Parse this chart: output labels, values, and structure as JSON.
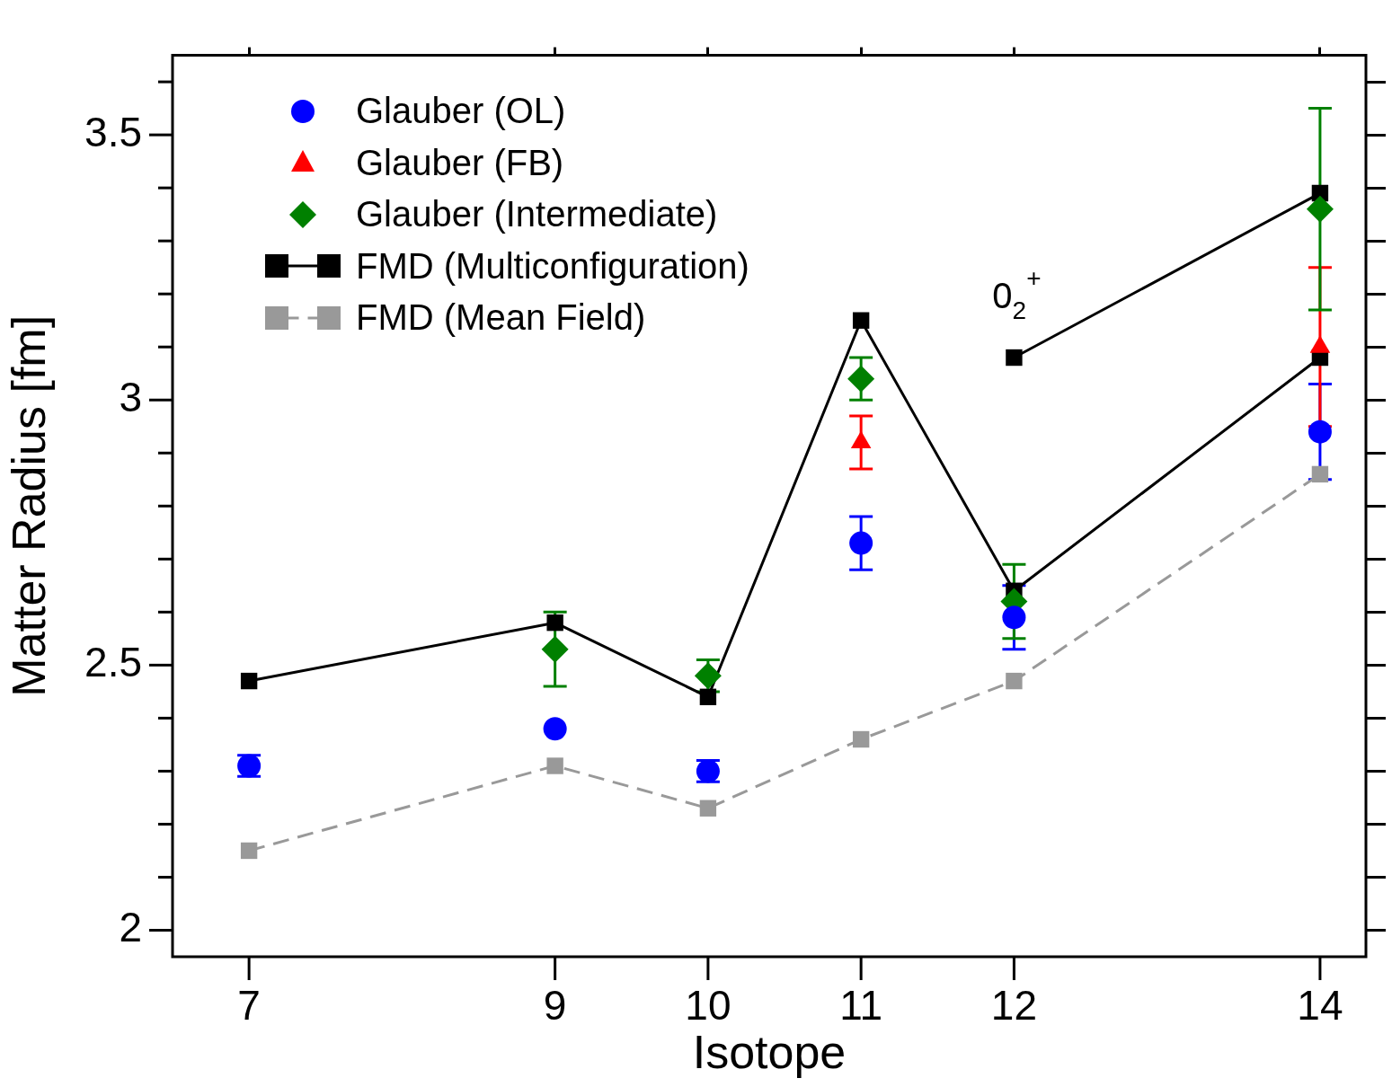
{
  "chart_data": {
    "type": "scatter",
    "xlabel": "Isotope",
    "ylabel": "Matter Radius [fm]",
    "xlim": [
      6.5,
      14.3
    ],
    "xticks": [
      7,
      9,
      10,
      11,
      12,
      14
    ],
    "ylim": [
      1.95,
      3.65
    ],
    "yticks": [
      2,
      {
        "value": 2.1,
        "label": null
      },
      {
        "value": 2.2,
        "label": null
      },
      {
        "value": 2.3,
        "label": null
      },
      {
        "value": 2.4,
        "label": null
      },
      2.5,
      {
        "value": 2.6,
        "label": null
      },
      {
        "value": 2.7,
        "label": null
      },
      {
        "value": 2.8,
        "label": null
      },
      {
        "value": 2.9,
        "label": null
      },
      3,
      {
        "value": 3.1,
        "label": null
      },
      {
        "value": 3.2,
        "label": null
      },
      {
        "value": 3.3,
        "label": null
      },
      {
        "value": 3.4,
        "label": null
      },
      3.5,
      {
        "value": 3.6,
        "label": null
      }
    ],
    "grid": false,
    "legend": "top left",
    "x": [
      7,
      9,
      10,
      11,
      12,
      14
    ],
    "annotations": [
      "0$_{2}$$^{+}$"
    ],
    "series": [
      {
        "name": "Glauber (OL)",
        "type": "scatter",
        "marker": "circle",
        "color": "#0000ff",
        "values": [
          2.31,
          2.38,
          2.3,
          2.73,
          2.59,
          2.94
        ],
        "errors": [
          0.02,
          null,
          0.02,
          0.05,
          0.06,
          0.09
        ]
      },
      {
        "name": "Glauber (FB)",
        "type": "scatter",
        "marker": "triangle",
        "color": "#ff0000",
        "x": [
          11,
          14
        ],
        "values": [
          2.92,
          3.1
        ],
        "errors": [
          0.05,
          0.15
        ]
      },
      {
        "name": "Glauber (Intermediate)",
        "type": "scatter",
        "marker": "diamond",
        "color": "#008000",
        "x": [
          9,
          10,
          11,
          12,
          14
        ],
        "values": [
          2.53,
          2.48,
          3.04,
          2.62,
          3.36
        ],
        "errors": [
          0.07,
          0.03,
          0.04,
          0.07,
          0.19
        ]
      },
      {
        "name": "FMD (Multiconfiguration)",
        "type": "line",
        "marker": "square",
        "line_style": "solid",
        "color": "#000000",
        "values": [
          2.47,
          2.58,
          2.44,
          3.15,
          2.64,
          3.08
        ]
      },
      {
        "type": "line",
        "marker": "square",
        "line_style": "solid",
        "color": "#000000",
        "x": [
          12,
          14
        ],
        "values": [
          3.08,
          3.39
        ]
      },
      {
        "name": "FMD (Mean Field)",
        "type": "line",
        "marker": "square",
        "line_style": "dashed",
        "color": "#999999",
        "values": [
          2.15,
          2.31,
          2.23,
          2.36,
          2.47,
          2.86
        ]
      }
    ]
  }
}
